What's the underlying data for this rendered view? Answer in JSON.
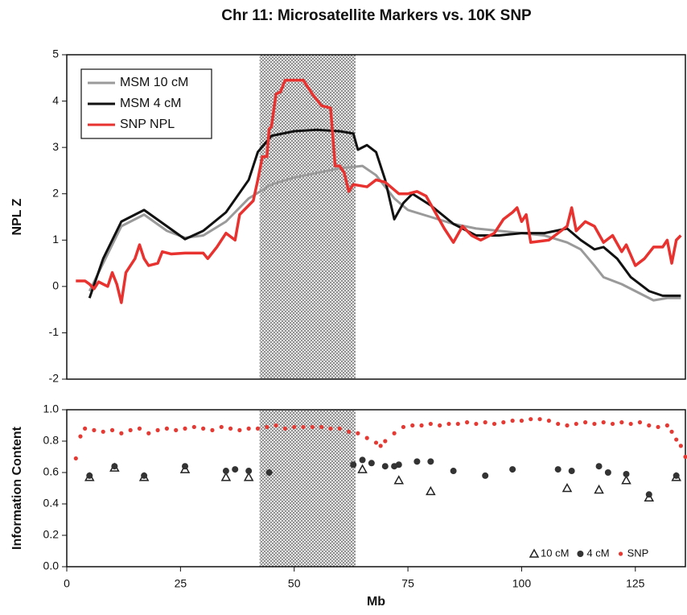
{
  "chart_data": [
    {
      "type": "line",
      "title": "Chr 11: Microsatellite Markers vs. 10K SNP",
      "y_label": "NPL Z",
      "xlim": [
        0,
        136
      ],
      "ylim": [
        -2,
        5
      ],
      "yticks": [
        -2,
        -1,
        0,
        1,
        2,
        3,
        4,
        5
      ],
      "legend": "upper left",
      "highlight_range": [
        42.4,
        63.5
      ],
      "series": [
        {
          "name": "MSM 10 cM",
          "color": "#9a9a9a",
          "x": [
            5,
            8,
            12,
            17,
            22,
            26,
            30,
            35,
            40,
            45,
            50,
            55,
            60,
            65,
            68,
            72,
            75,
            80,
            85,
            90,
            95,
            100,
            105,
            110,
            113,
            116,
            118,
            122,
            126,
            129,
            132,
            135
          ],
          "values": [
            -0.1,
            0.5,
            1.3,
            1.55,
            1.2,
            1.05,
            1.1,
            1.4,
            1.9,
            2.2,
            2.35,
            2.45,
            2.55,
            2.6,
            2.4,
            1.9,
            1.65,
            1.5,
            1.35,
            1.25,
            1.2,
            1.15,
            1.1,
            0.95,
            0.8,
            0.45,
            0.2,
            0.05,
            -0.15,
            -0.3,
            -0.25,
            -0.25
          ]
        },
        {
          "name": "MSM 4 cM",
          "color": "#111111",
          "x": [
            5,
            8,
            12,
            17,
            22,
            26,
            30,
            35,
            40,
            42,
            45,
            50,
            55,
            60,
            63,
            64,
            66,
            68,
            70,
            72,
            74,
            76,
            80,
            85,
            90,
            95,
            100,
            105,
            110,
            113,
            116,
            118,
            121,
            124,
            128,
            131,
            135
          ],
          "values": [
            -0.25,
            0.6,
            1.4,
            1.65,
            1.3,
            1.02,
            1.2,
            1.6,
            2.3,
            2.9,
            3.25,
            3.35,
            3.38,
            3.35,
            3.3,
            2.95,
            3.05,
            2.9,
            2.3,
            1.45,
            1.8,
            2.0,
            1.75,
            1.35,
            1.1,
            1.1,
            1.15,
            1.15,
            1.25,
            1.0,
            0.8,
            0.85,
            0.6,
            0.2,
            -0.1,
            -0.2,
            -0.2
          ]
        },
        {
          "name": "SNP NPL",
          "color": "#e8322f",
          "x": [
            2,
            4,
            5,
            6,
            7,
            9,
            10,
            11,
            12,
            13,
            14,
            15,
            16,
            17,
            18,
            20,
            21,
            23,
            26,
            30,
            31,
            33,
            35,
            37,
            38,
            40,
            41,
            42,
            43,
            44,
            44.5,
            45,
            46,
            47,
            48,
            52,
            54,
            56,
            58,
            59,
            60,
            61,
            62,
            63,
            66,
            68,
            70,
            73,
            75,
            77,
            79,
            81,
            83,
            85,
            87,
            89,
            91,
            94,
            96,
            98,
            99,
            100,
            101,
            102,
            106,
            108,
            110,
            111,
            112,
            114,
            116,
            118,
            120,
            122,
            123,
            125,
            127,
            129,
            131,
            132,
            133,
            134,
            135
          ],
          "values": [
            0.12,
            0.12,
            0.05,
            -0.05,
            0.1,
            0.0,
            0.3,
            0.05,
            -0.35,
            0.3,
            0.45,
            0.6,
            0.9,
            0.6,
            0.45,
            0.5,
            0.75,
            0.7,
            0.72,
            0.72,
            0.6,
            0.85,
            1.15,
            1.0,
            1.55,
            1.75,
            1.85,
            2.3,
            2.8,
            2.8,
            3.4,
            3.45,
            4.15,
            4.2,
            4.45,
            4.45,
            4.15,
            3.9,
            3.85,
            2.6,
            2.6,
            2.45,
            2.05,
            2.2,
            2.15,
            2.3,
            2.25,
            2.0,
            2.0,
            2.05,
            1.95,
            1.6,
            1.25,
            0.95,
            1.3,
            1.1,
            1.0,
            1.15,
            1.45,
            1.6,
            1.7,
            1.4,
            1.55,
            0.95,
            1.0,
            1.15,
            1.3,
            1.7,
            1.2,
            1.4,
            1.3,
            0.95,
            1.1,
            0.75,
            0.9,
            0.45,
            0.6,
            0.85,
            0.85,
            1.0,
            0.5,
            1.0,
            1.1
          ]
        }
      ]
    },
    {
      "type": "scatter",
      "x_label": "Mb",
      "y_label": "Information Content",
      "xlim": [
        0,
        136
      ],
      "ylim": [
        0,
        1
      ],
      "xticks": [
        0,
        25,
        50,
        75,
        100,
        125
      ],
      "yticks": [
        {
          "value": 0,
          "label": "0.0"
        },
        0.2,
        0.4,
        0.6,
        0.8,
        {
          "value": 1,
          "label": "1.0"
        }
      ],
      "legend": "lower right",
      "series": [
        {
          "name": "10 cM",
          "color": "#222222",
          "marker": "triangle",
          "x": [
            5,
            10.5,
            17,
            26,
            35,
            40,
            65,
            73,
            80,
            110,
            117,
            123,
            128,
            134
          ],
          "values": [
            0.57,
            0.63,
            0.57,
            0.62,
            0.57,
            0.57,
            0.62,
            0.55,
            0.48,
            0.5,
            0.49,
            0.55,
            0.44,
            0.57
          ]
        },
        {
          "name": "4 cM",
          "color": "#333333",
          "marker": "circle",
          "x": [
            5,
            10.5,
            17,
            26,
            35,
            37,
            40,
            44.5,
            63,
            65,
            67,
            70,
            72,
            73,
            77,
            80,
            85,
            92,
            98,
            108,
            111,
            117,
            119,
            123,
            128,
            134
          ],
          "values": [
            0.58,
            0.64,
            0.58,
            0.64,
            0.61,
            0.62,
            0.61,
            0.6,
            0.65,
            0.68,
            0.66,
            0.64,
            0.64,
            0.65,
            0.67,
            0.67,
            0.61,
            0.58,
            0.62,
            0.62,
            0.61,
            0.64,
            0.6,
            0.59,
            0.46,
            0.58
          ]
        },
        {
          "name": "SNP",
          "color": "#e53a34",
          "marker": "dot",
          "x": [
            2,
            3,
            4,
            6,
            8,
            10,
            12,
            14,
            16,
            18,
            20,
            22,
            24,
            26,
            28,
            30,
            32,
            34,
            36,
            38,
            40,
            42,
            44,
            46,
            48,
            50,
            52,
            54,
            56,
            58,
            60,
            62,
            64,
            66,
            68,
            69,
            70,
            72,
            74,
            76,
            78,
            80,
            82,
            84,
            86,
            88,
            90,
            92,
            94,
            96,
            98,
            100,
            102,
            104,
            106,
            108,
            110,
            112,
            114,
            116,
            118,
            120,
            122,
            124,
            126,
            128,
            130,
            132,
            133,
            134,
            135,
            136
          ],
          "values": [
            0.69,
            0.83,
            0.88,
            0.87,
            0.86,
            0.87,
            0.85,
            0.87,
            0.88,
            0.85,
            0.87,
            0.88,
            0.87,
            0.88,
            0.89,
            0.88,
            0.87,
            0.89,
            0.88,
            0.87,
            0.88,
            0.88,
            0.89,
            0.9,
            0.88,
            0.89,
            0.89,
            0.89,
            0.89,
            0.88,
            0.88,
            0.86,
            0.85,
            0.82,
            0.79,
            0.77,
            0.8,
            0.85,
            0.89,
            0.9,
            0.9,
            0.91,
            0.9,
            0.91,
            0.91,
            0.92,
            0.91,
            0.92,
            0.91,
            0.92,
            0.93,
            0.93,
            0.94,
            0.94,
            0.93,
            0.91,
            0.9,
            0.91,
            0.92,
            0.91,
            0.92,
            0.91,
            0.92,
            0.91,
            0.92,
            0.9,
            0.89,
            0.9,
            0.86,
            0.81,
            0.77,
            0.7
          ]
        }
      ]
    }
  ]
}
